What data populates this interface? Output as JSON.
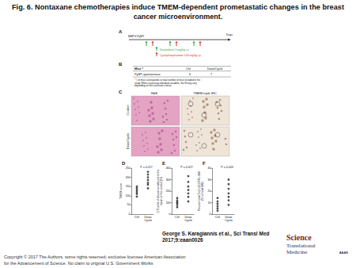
{
  "title": [
    "Fig. 6. Nontaxane chemotherapies induce TMEM-dependent prometastatic changes in the breast",
    "cancer microenvironment."
  ],
  "panels": {
    "A": {
      "label": "A",
      "strain": "MMTV-PyMT",
      "axis_label": "Days",
      "treatments": [
        {
          "name": "Doxorubicin 5 mg/kg i.v.",
          "color": "#2e9e44"
        },
        {
          "name": "Cyclophosphamide 100 mg/kg i.p.",
          "color": "#d9342b"
        }
      ]
    },
    "B": {
      "label": "B",
      "table": {
        "header": [
          "Mice *",
          "Ctrl",
          "Doxo/Cyclo"
        ],
        "rows": [
          [
            "PyMT-spontaneous",
            6,
            7
          ]
        ]
      },
      "footnote": [
        "* # of mice corresponds to total number of mice included in the",
        "study. When assessing individual variables, the N may vary",
        "depending on the exclusion criteria."
      ]
    },
    "C": {
      "label": "C",
      "columns": [
        "H&E",
        "TMEM triple IHC"
      ],
      "rows": [
        "Control",
        "Doxo/Cyclo"
      ]
    }
  },
  "chart_data": [
    {
      "type": "scatter",
      "title": "D",
      "y_label": [
        "TMEM score"
      ],
      "categories": [
        "Ctrl",
        "Doxo Cyclo"
      ],
      "values": [
        [
          95,
          110,
          120,
          130,
          140,
          150
        ],
        [
          140,
          160,
          170,
          185,
          200,
          215,
          230
        ]
      ],
      "ylim": [
        0,
        250
      ],
      "yticks": [
        0,
        50,
        100,
        150,
        200,
        250
      ],
      "annotations": [
        "P = 0.017"
      ],
      "marker": "circle",
      "color": "#222222",
      "grid": false
    },
    {
      "type": "scatter",
      "title": "E",
      "y_label": [
        "CTCs/ml of blood normalized to the",
        "mean of the control (%)"
      ],
      "categories": [
        "Ctrl",
        "Doxo Cyclo"
      ],
      "values": [
        [
          60,
          80,
          95,
          105,
          120,
          140
        ],
        [
          110,
          150,
          180,
          210,
          240,
          280,
          330
        ]
      ],
      "ylim": [
        0,
        400
      ],
      "yticks": [
        0,
        100,
        200,
        300,
        400
      ],
      "annotations": [
        "P = 0.027"
      ],
      "marker": "circle",
      "color": "#222222",
      "grid": false
    },
    {
      "type": "scatter",
      "title": "F",
      "y_label": [
        "Percent total Tie2+VEGFR+ MΦ",
        "(% of total MΦ)"
      ],
      "categories": [
        "Ctrl",
        "Doxo Cyclo"
      ],
      "values": [
        [
          3,
          5,
          7,
          9,
          11,
          14
        ],
        [
          8,
          12,
          15,
          18,
          22,
          26,
          30
        ]
      ],
      "ylim": [
        0,
        40
      ],
      "yticks": [
        0,
        10,
        20,
        30,
        40
      ],
      "annotations": [
        "P = 0.003"
      ],
      "marker": "circle",
      "color": "#222222",
      "grid": false
    }
  ],
  "footer": {
    "citation": [
      "George S. Karagiannis et al., Sci Transl Med",
      "2017;9:eaan0026"
    ],
    "journal": [
      "Science",
      "Translational",
      "Medicine"
    ],
    "publisher": "AAAS",
    "copyright": [
      "Copyright © 2017 The Authors, some rights reserved; exclusive licensee American Association",
      "for the Advancement of Science. No claim to original U.S. Government Works"
    ]
  }
}
